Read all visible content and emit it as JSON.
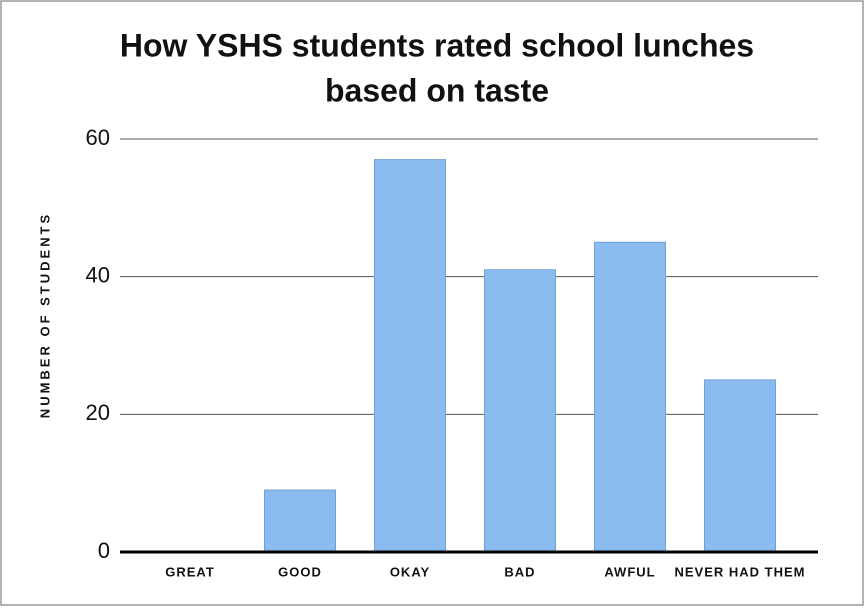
{
  "chart_data": {
    "type": "bar",
    "title": [
      "How YSHS students rated school lunches",
      "based on taste"
    ],
    "y_label": "NUMBER OF STUDENTS",
    "categories": [
      "GREAT",
      "GOOD",
      "OKAY",
      "BAD",
      "AWFUL",
      "NEVER HAD THEM"
    ],
    "values": [
      0,
      9,
      57,
      41,
      45,
      25
    ],
    "color": "#8bbcf0",
    "ylim": [
      0,
      60
    ],
    "yticks": [
      0,
      20,
      40,
      60
    ],
    "grid": true
  }
}
